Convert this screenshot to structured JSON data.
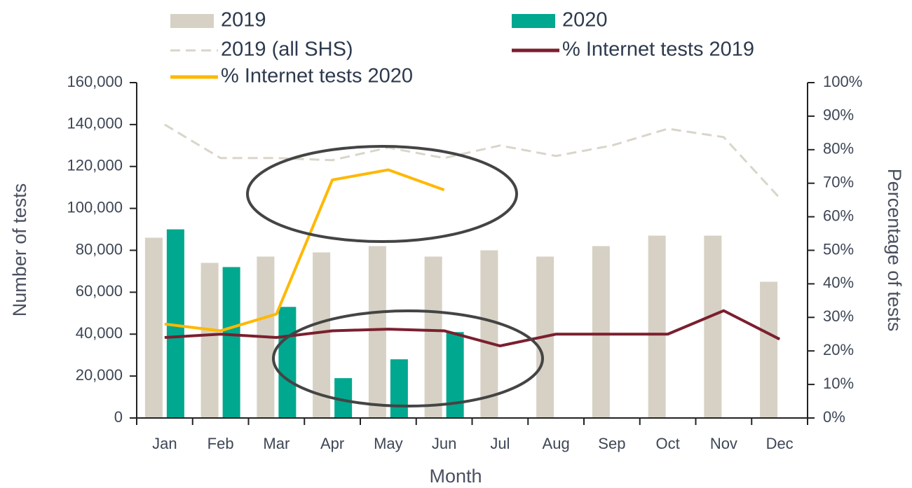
{
  "chart_data": {
    "type": "bar",
    "x_label": "Month",
    "y_label": "Number of tests",
    "y2_label": "Percentage of tests",
    "categories": [
      "Jan",
      "Feb",
      "Mar",
      "Apr",
      "May",
      "Jun",
      "Jul",
      "Aug",
      "Sep",
      "Oct",
      "Nov",
      "Dec"
    ],
    "series": [
      {
        "name": "2019",
        "type": "bar",
        "color": "#d6d1c4",
        "values": [
          86000,
          74000,
          77000,
          79000,
          82000,
          77000,
          80000,
          77000,
          82000,
          87000,
          87000,
          65000
        ]
      },
      {
        "name": "2020",
        "type": "bar",
        "color": "#00a88f",
        "values": [
          90000,
          72000,
          53000,
          19000,
          28000,
          41000,
          null,
          null,
          null,
          null,
          null,
          null
        ]
      },
      {
        "name": "2019 (all SHS)",
        "type": "line",
        "dashed": true,
        "color": "#d9d5ca",
        "values": [
          140000,
          124000,
          124000,
          123000,
          129000,
          124000,
          130000,
          125000,
          130000,
          138000,
          134000,
          105000
        ]
      },
      {
        "name": "% Internet tests 2019",
        "type": "line",
        "axis": "y2",
        "color": "#7b1f2e",
        "values": [
          24,
          25,
          24,
          26,
          26.5,
          26,
          21.5,
          25,
          25,
          25,
          32,
          23.5
        ]
      },
      {
        "name": "% Internet tests 2020",
        "type": "line",
        "axis": "y2",
        "color": "#ffb800",
        "values": [
          28,
          26,
          31,
          71,
          74,
          68,
          null,
          null,
          null,
          null,
          null,
          null
        ]
      }
    ],
    "ylim": [
      0,
      160000
    ],
    "yticks": [
      0,
      {
        "value": 20000,
        "label": "20,000"
      },
      {
        "value": 40000,
        "label": "40,000"
      },
      {
        "value": 60000,
        "label": "60,000"
      },
      {
        "value": 80000,
        "label": "80,000"
      },
      {
        "value": 100000,
        "label": "100,000"
      },
      {
        "value": 120000,
        "label": "120,000"
      },
      {
        "value": 140000,
        "label": "140,000"
      },
      {
        "value": 160000,
        "label": "160,000"
      }
    ],
    "y2lim": [
      0,
      100
    ],
    "y2ticks": [
      {
        "value": 0,
        "label": "0%"
      },
      {
        "value": 10,
        "label": "10%"
      },
      {
        "value": 20,
        "label": "20%"
      },
      {
        "value": 30,
        "label": "30%"
      },
      {
        "value": 40,
        "label": "40%"
      },
      {
        "value": 50,
        "label": "50%"
      },
      {
        "value": 60,
        "label": "60%"
      },
      {
        "value": 70,
        "label": "70%"
      },
      {
        "value": 80,
        "label": "80%"
      },
      {
        "value": 90,
        "label": "90%"
      },
      {
        "value": 100,
        "label": "100%"
      }
    ],
    "grid": false
  }
}
